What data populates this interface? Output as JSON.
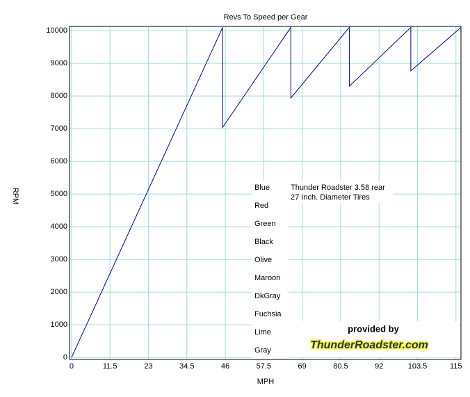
{
  "chart_data": {
    "type": "line",
    "title": "Revs To Speed per Gear",
    "x_label": "MPH",
    "y_label": "RPM",
    "x": [
      0,
      45.2,
      45.2,
      65.6,
      65.6,
      83.1,
      83.1,
      101.5,
      101.5,
      116.5
    ],
    "series": [
      {
        "name": "Blue",
        "color": "#000099",
        "values": [
          0,
          10100,
          7040,
          10100,
          7940,
          10100,
          8300,
          10100,
          8770,
          10100
        ]
      }
    ],
    "legend": [
      "Blue",
      "Red",
      "Green",
      "Black",
      "Olive",
      "Maroon",
      "DkGray",
      "Fuchsia",
      "Lime",
      "Gray"
    ],
    "annotations": [
      "Thunder Roadster 3.58 rear",
      "27 Inch. Diameter Tires",
      "provided by",
      "ThunderRoadster.com"
    ],
    "xlim": [
      -0.6,
      116.5
    ],
    "ylim": [
      -60,
      10130
    ],
    "xticks": [
      0,
      11.5,
      23,
      34.5,
      46,
      57.5,
      69,
      80.5,
      92,
      103.5,
      115
    ],
    "yticks": [
      0,
      1000,
      2000,
      3000,
      4000,
      5000,
      6000,
      7000,
      8000,
      9000,
      10000
    ],
    "grid": true,
    "grid_color": "#9fdede"
  }
}
